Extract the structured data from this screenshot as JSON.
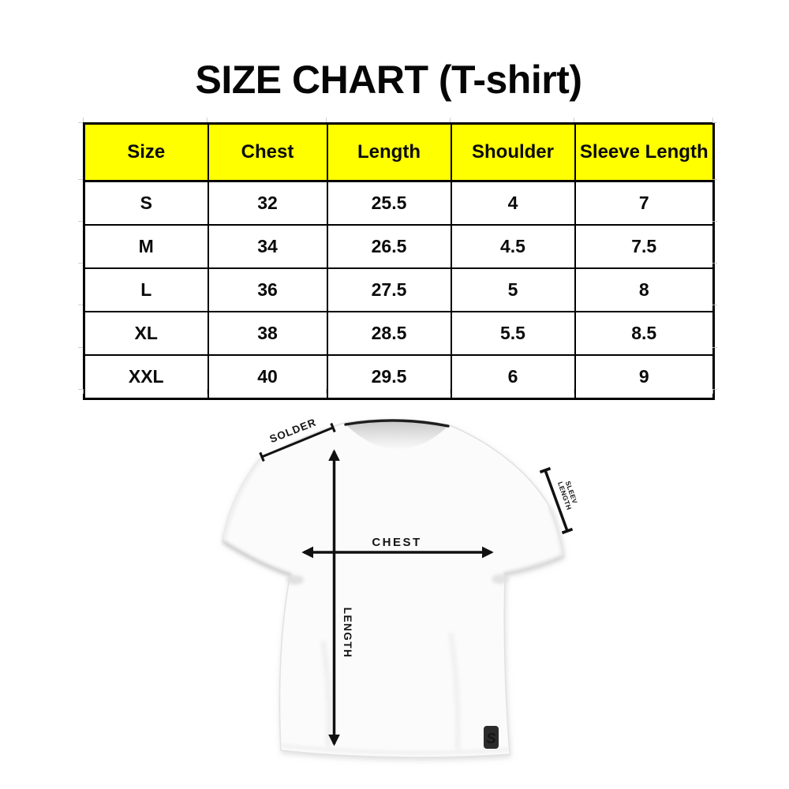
{
  "title": "SIZE CHART (T-shirt)",
  "size_table": {
    "header_bg": "#ffff00",
    "border_color": "#000000",
    "columns": [
      "Size",
      "Chest",
      "Length",
      "Shoulder",
      "Sleeve Length"
    ],
    "rows": [
      [
        "S",
        "32",
        "25.5",
        "4",
        "7"
      ],
      [
        "M",
        "34",
        "26.5",
        "4.5",
        "7.5"
      ],
      [
        "L",
        "36",
        "27.5",
        "5",
        "8"
      ],
      [
        "XL",
        "38",
        "28.5",
        "5.5",
        "8.5"
      ],
      [
        "XXL",
        "40",
        "29.5",
        "6",
        "9"
      ]
    ]
  },
  "diagram": {
    "shoulder_label": "SOLDER",
    "sleeve_label_line1": "SLEEV",
    "sleeve_label_line2": "LENGTH",
    "chest_label": "CHEST",
    "length_label": "LENGTH",
    "logo_letter": "S"
  }
}
